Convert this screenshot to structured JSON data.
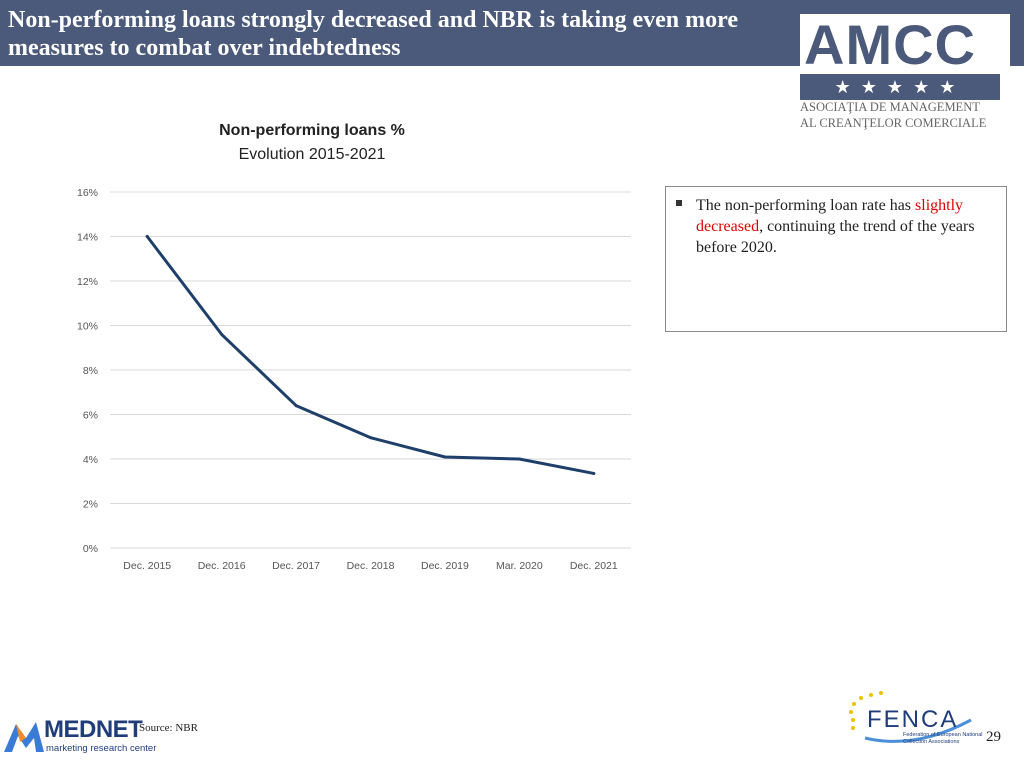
{
  "header": {
    "title": "Non-performing loans strongly decreased and NBR is taking even more measures to combat over indebtedness",
    "accent_color": "#4b5a7a"
  },
  "amcc_logo": {
    "name": "AMCC",
    "stars": "★★★★★",
    "line1": "ASOCIAŢIA DE MANAGEMENT",
    "line2": "AL CREANŢELOR COMERCIALE"
  },
  "chart_data": {
    "type": "line",
    "title": "Non-performing loans %",
    "subtitle": "Evolution 2015-2021",
    "categories": [
      "Dec. 2015",
      "Dec. 2016",
      "Dec. 2017",
      "Dec. 2018",
      "Dec. 2019",
      "Mar. 2020",
      "Dec. 2021"
    ],
    "series": [
      {
        "values": [
          14.0,
          9.6,
          6.4,
          4.96,
          4.09,
          4.0,
          3.35
        ],
        "color": "#1f3f6b"
      }
    ],
    "ylim": [
      0,
      16
    ],
    "yticks": [
      0,
      2,
      4,
      6,
      8,
      10,
      12,
      14,
      16
    ],
    "ytick_labels": [
      "0%",
      "2%",
      "4%",
      "6%",
      "8%",
      "10%",
      "12%",
      "14%",
      "16%"
    ],
    "grid": true,
    "legend": "none"
  },
  "note": {
    "before": "The non-performing loan rate has ",
    "highlight": "slightly decreased",
    "after": ", continuing the trend of the years before 2020.",
    "highlight_color": "#e00000"
  },
  "footer": {
    "mednet_name": "MEDNET",
    "mednet_tag": "marketing research center",
    "source": "Source: NBR",
    "fenca_name": "FENCA",
    "fenca_tag": "Federation of European National Collection Associations",
    "page_number": "29"
  }
}
